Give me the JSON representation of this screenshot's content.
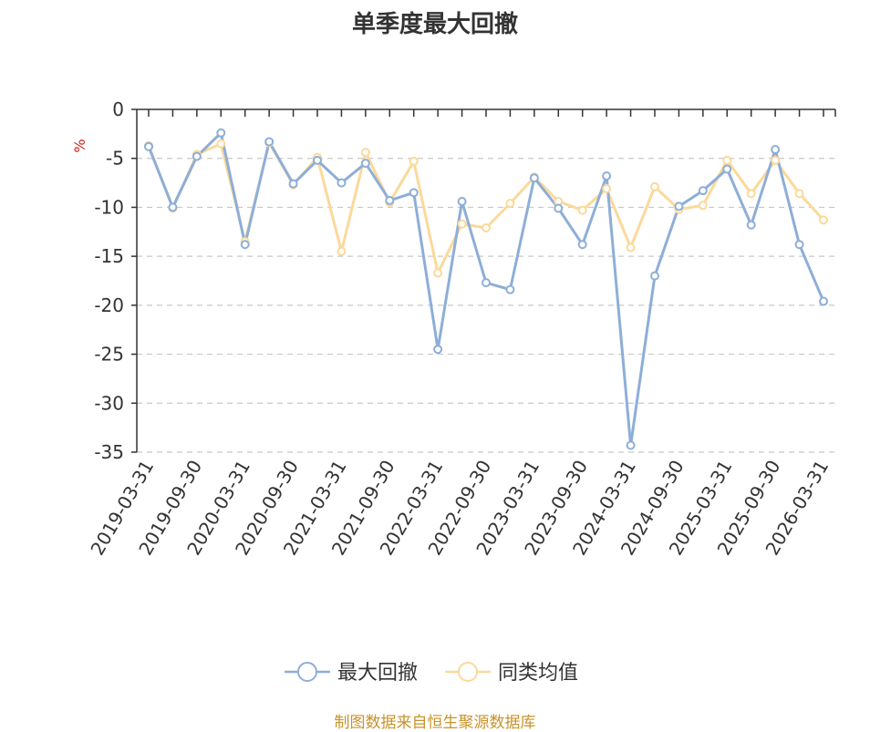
{
  "title": "单季度最大回撤",
  "source": "制图数据来自恒生聚源数据库",
  "chart_data": {
    "type": "line",
    "ylabel": "%",
    "ylim": [
      -35,
      0
    ],
    "yticks": [
      0,
      -5,
      -10,
      -15,
      -20,
      -25,
      -30,
      -35
    ],
    "grid": true,
    "legend_position": "bottom",
    "tick_labels": [
      "2019-03-31",
      "2019-09-30",
      "2020-03-31",
      "2020-09-30",
      "2021-03-31",
      "2021-09-30",
      "2022-03-31",
      "2022-09-30",
      "2023-03-31",
      "2023-09-30",
      "2024-03-31",
      "2024-09-30",
      "2025-03-31",
      "2025-09-30",
      "2026-03-31"
    ],
    "categories": [
      "2019-03-31",
      "2019-06-30",
      "2019-09-30",
      "2019-12-31",
      "2020-03-31",
      "2020-06-30",
      "2020-09-30",
      "2020-12-31",
      "2021-03-31",
      "2021-06-30",
      "2021-09-30",
      "2021-12-31",
      "2022-03-31",
      "2022-06-30",
      "2022-09-30",
      "2022-12-31",
      "2023-03-31",
      "2023-06-30",
      "2023-09-30",
      "2023-12-31",
      "2024-03-31",
      "2024-06-30",
      "2024-09-30",
      "2024-12-31",
      "2025-03-31",
      "2025-06-30",
      "2025-09-30",
      "2025-12-31",
      "2026-03-31"
    ],
    "series": [
      {
        "name": "最大回撤",
        "color": "#8eaed8",
        "values": [
          -3.8,
          -10.0,
          -4.8,
          -2.4,
          -13.8,
          -3.3,
          -7.6,
          -5.2,
          -7.5,
          -5.5,
          -9.3,
          -8.5,
          -24.5,
          -9.4,
          -17.7,
          -18.4,
          -7.0,
          -10.1,
          -13.8,
          -6.8,
          -34.3,
          -17.0,
          -9.9,
          -8.3,
          -6.1,
          -11.8,
          -4.1,
          -13.8,
          -19.6
        ]
      },
      {
        "name": "同类均值",
        "color": "#fbd99a",
        "values": [
          -3.7,
          -10.1,
          -4.6,
          -3.5,
          -13.5,
          -3.4,
          -7.7,
          -4.9,
          -14.5,
          -4.4,
          -9.5,
          -5.3,
          -16.7,
          -11.7,
          -12.1,
          -9.6,
          -6.9,
          -9.4,
          -10.3,
          -8.1,
          -14.1,
          -7.9,
          -10.2,
          -9.8,
          -5.2,
          -8.6,
          -5.2,
          -8.6,
          -11.3
        ]
      }
    ]
  }
}
